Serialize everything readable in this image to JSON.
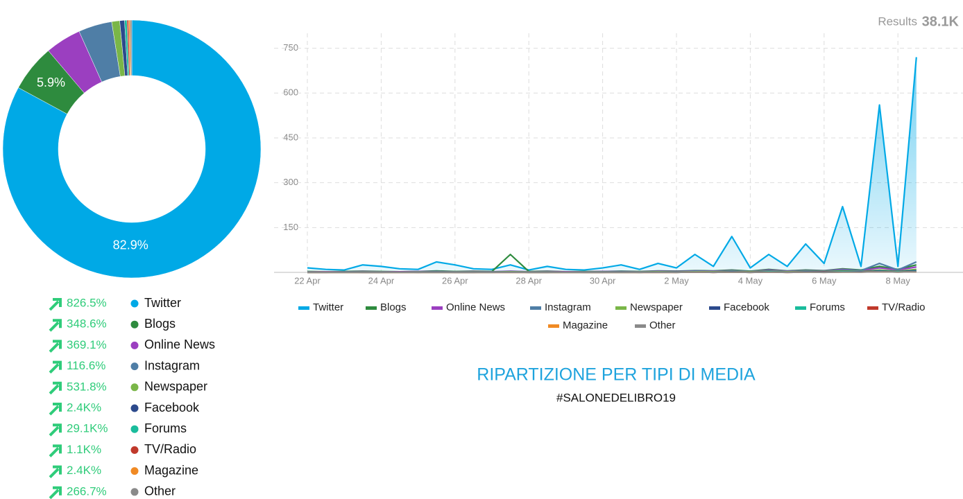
{
  "results_label": "Results",
  "results_value": "38.1K",
  "title": "RIPARTIZIONE PER TIPI DI MEDIA",
  "subtitle": "#SALONEDELIBRO19",
  "growth": [
    "826.5%",
    "348.6%",
    "369.1%",
    "116.6%",
    "531.8%",
    "2.4K%",
    "29.1K%",
    "1.1K%",
    "2.4K%",
    "266.7%"
  ],
  "chart_data": [
    {
      "type": "pie",
      "donut": true,
      "categories": [
        "Twitter",
        "Blogs",
        "Online News",
        "Instagram",
        "Newspaper",
        "Facebook",
        "Forums",
        "TV/Radio",
        "Magazine",
        "Other"
      ],
      "values": [
        82.9,
        5.9,
        4.5,
        4.2,
        1.0,
        0.6,
        0.3,
        0.2,
        0.2,
        0.2
      ],
      "value_labels": [
        "82.9%",
        "5.9%",
        null,
        null,
        null,
        null,
        null,
        null,
        null,
        null
      ],
      "colors": [
        "#00a9e6",
        "#2e8b3e",
        "#9b3fc0",
        "#4f7ea6",
        "#7ab648",
        "#2c4a8c",
        "#1abc9c",
        "#c0392b",
        "#f08a24",
        "#8a8a8a"
      ]
    },
    {
      "type": "line",
      "categories": [
        "22 Apr",
        null,
        null,
        null,
        "24 Apr",
        null,
        null,
        null,
        "26 Apr",
        null,
        null,
        null,
        "28 Apr",
        null,
        null,
        null,
        "30 Apr",
        null,
        null,
        null,
        "2 May",
        null,
        null,
        null,
        "4 May",
        null,
        null,
        null,
        "6 May",
        null,
        null,
        null,
        "8 May",
        null
      ],
      "ylim": [
        0,
        800
      ],
      "yticks": [
        150,
        300,
        450,
        600,
        750
      ],
      "grid": true,
      "series": [
        {
          "name": "Twitter",
          "color": "#00a9e6",
          "area": true,
          "values": [
            15,
            10,
            8,
            25,
            20,
            12,
            10,
            35,
            25,
            12,
            10,
            25,
            8,
            20,
            10,
            8,
            15,
            25,
            10,
            30,
            15,
            60,
            20,
            120,
            15,
            60,
            20,
            95,
            30,
            220,
            20,
            560,
            20,
            720
          ]
        },
        {
          "name": "Blogs",
          "color": "#2e8b3e",
          "values": [
            3,
            2,
            3,
            4,
            3,
            2,
            3,
            5,
            3,
            4,
            3,
            60,
            3,
            4,
            2,
            3,
            3,
            4,
            3,
            5,
            4,
            6,
            5,
            8,
            4,
            10,
            5,
            8,
            6,
            12,
            8,
            20,
            10,
            25
          ]
        },
        {
          "name": "Online News",
          "color": "#9b3fc0",
          "values": [
            2,
            2,
            2,
            3,
            2,
            2,
            3,
            3,
            2,
            3,
            2,
            4,
            2,
            3,
            2,
            2,
            3,
            3,
            2,
            4,
            3,
            5,
            4,
            6,
            3,
            8,
            4,
            6,
            5,
            10,
            6,
            15,
            8,
            18
          ]
        },
        {
          "name": "Instagram",
          "color": "#4f7ea6",
          "values": [
            2,
            1,
            2,
            2,
            2,
            1,
            2,
            3,
            2,
            2,
            2,
            3,
            2,
            2,
            1,
            2,
            2,
            3,
            2,
            3,
            2,
            4,
            3,
            5,
            3,
            6,
            3,
            5,
            4,
            8,
            6,
            30,
            8,
            35
          ]
        },
        {
          "name": "Newspaper",
          "color": "#7ab648",
          "values": [
            1,
            1,
            1,
            1,
            1,
            1,
            1,
            1,
            1,
            1,
            1,
            2,
            1,
            1,
            1,
            1,
            1,
            1,
            1,
            2,
            1,
            2,
            2,
            3,
            2,
            4,
            2,
            3,
            3,
            5,
            3,
            8,
            4,
            10
          ]
        },
        {
          "name": "Facebook",
          "color": "#2c4a8c",
          "values": [
            0,
            0,
            1,
            0,
            0,
            1,
            0,
            1,
            0,
            0,
            1,
            1,
            0,
            0,
            1,
            0,
            0,
            1,
            0,
            1,
            1,
            1,
            1,
            2,
            1,
            3,
            1,
            2,
            2,
            3,
            2,
            5,
            3,
            6
          ]
        },
        {
          "name": "Forums",
          "color": "#1abc9c",
          "values": [
            0,
            0,
            0,
            0,
            0,
            0,
            0,
            0,
            0,
            0,
            0,
            1,
            0,
            0,
            0,
            0,
            0,
            0,
            0,
            1,
            0,
            1,
            1,
            1,
            0,
            2,
            1,
            1,
            1,
            2,
            1,
            3,
            2,
            3
          ]
        },
        {
          "name": "TV/Radio",
          "color": "#c0392b",
          "values": [
            0,
            0,
            0,
            0,
            0,
            0,
            0,
            0,
            0,
            0,
            0,
            0,
            0,
            0,
            0,
            0,
            0,
            0,
            0,
            0,
            0,
            1,
            0,
            1,
            0,
            1,
            0,
            1,
            1,
            1,
            1,
            2,
            1,
            2
          ]
        },
        {
          "name": "Magazine",
          "color": "#f08a24",
          "values": [
            0,
            0,
            0,
            0,
            0,
            0,
            0,
            0,
            0,
            0,
            0,
            0,
            0,
            0,
            0,
            0,
            0,
            0,
            0,
            0,
            0,
            1,
            0,
            1,
            0,
            1,
            0,
            1,
            0,
            1,
            1,
            2,
            1,
            2
          ]
        },
        {
          "name": "Other",
          "color": "#8a8a8a",
          "values": [
            0,
            0,
            0,
            0,
            0,
            0,
            0,
            0,
            0,
            0,
            0,
            0,
            0,
            0,
            0,
            0,
            0,
            0,
            0,
            0,
            0,
            1,
            0,
            1,
            0,
            1,
            0,
            1,
            0,
            1,
            1,
            2,
            1,
            2
          ]
        }
      ]
    }
  ]
}
